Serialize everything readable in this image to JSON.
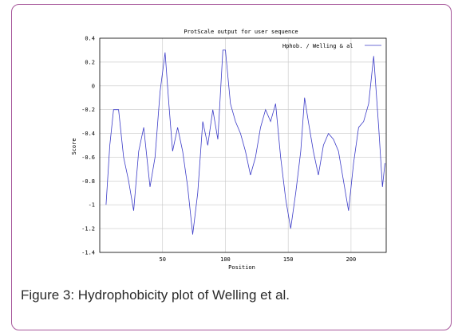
{
  "figure_caption": "Figure 3: Hydrophobicity plot of Welling et al.",
  "colors": {
    "frame_border": "#a6569a",
    "series_line": "#3c3cc8",
    "grid": "#c8c8c8",
    "axis": "#000000"
  },
  "chart_data": {
    "type": "line",
    "title": "ProtScale output for user sequence",
    "xlabel": "Position",
    "ylabel": "Score",
    "xlim": [
      0,
      228
    ],
    "ylim": [
      -1.4,
      0.4
    ],
    "x_ticks": [
      50,
      100,
      150,
      200
    ],
    "y_ticks": [
      -1.4,
      -1.2,
      -1,
      -0.8,
      -0.6,
      -0.4,
      -0.2,
      0,
      0.2,
      0.4
    ],
    "x_tick_labels": [
      "50",
      "100",
      "150",
      "200"
    ],
    "y_tick_labels": [
      "-1.4",
      "-1.2",
      "-1",
      "-0.8",
      "-0.6",
      "-0.4",
      "-0.2",
      "0",
      "0.2",
      "0.4"
    ],
    "grid": true,
    "legend_position": "top-right",
    "series": [
      {
        "name": "Hphob. / Welling & al",
        "x": [
          5,
          8,
          11,
          15,
          19,
          23,
          27,
          31,
          35,
          40,
          44,
          48,
          52,
          55,
          58,
          62,
          66,
          70,
          74,
          78,
          82,
          86,
          90,
          94,
          98,
          100,
          104,
          108,
          112,
          116,
          120,
          124,
          128,
          132,
          136,
          140,
          144,
          148,
          152,
          156,
          160,
          163,
          166,
          170,
          174,
          178,
          182,
          186,
          190,
          194,
          198,
          202,
          206,
          210,
          214,
          218,
          222,
          225,
          227
        ],
        "y": [
          -1.0,
          -0.5,
          -0.2,
          -0.2,
          -0.6,
          -0.8,
          -1.05,
          -0.55,
          -0.35,
          -0.85,
          -0.6,
          -0.05,
          0.28,
          -0.15,
          -0.55,
          -0.35,
          -0.55,
          -0.85,
          -1.25,
          -0.9,
          -0.3,
          -0.5,
          -0.2,
          -0.45,
          0.3,
          0.3,
          -0.15,
          -0.3,
          -0.4,
          -0.55,
          -0.75,
          -0.6,
          -0.35,
          -0.2,
          -0.3,
          -0.15,
          -0.6,
          -0.95,
          -1.2,
          -0.9,
          -0.55,
          -0.1,
          -0.3,
          -0.55,
          -0.75,
          -0.5,
          -0.4,
          -0.45,
          -0.55,
          -0.8,
          -1.05,
          -0.65,
          -0.35,
          -0.3,
          -0.15,
          0.25,
          -0.35,
          -0.85,
          -0.65
        ]
      }
    ]
  }
}
